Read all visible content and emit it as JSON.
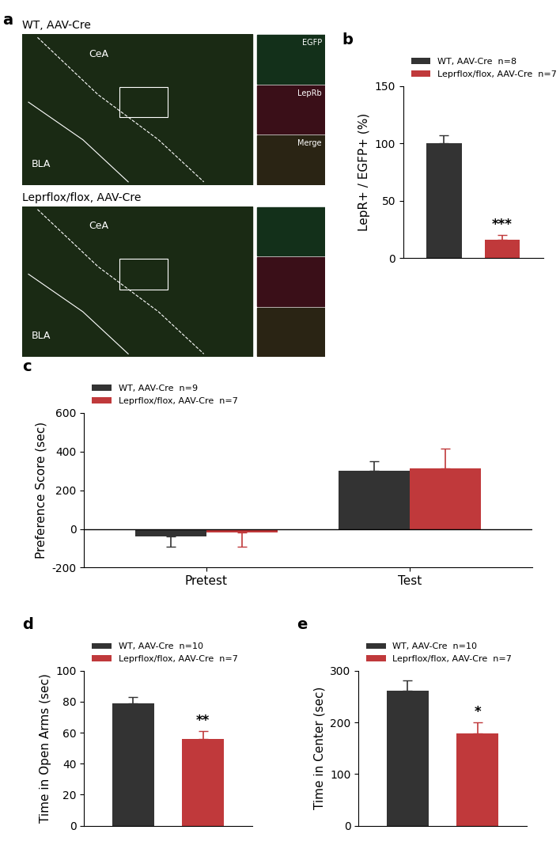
{
  "panel_a": {
    "label": "a",
    "images": [
      {
        "title": "WT, AAV-Cre",
        "regions": [
          "CeA",
          "BLA"
        ],
        "insets": [
          "EGFP",
          "LepRb",
          "Merge"
        ]
      },
      {
        "title": "Leprflox/flox, AAV-Cre",
        "regions": [
          "CeA",
          "BLA"
        ],
        "insets": []
      }
    ]
  },
  "chart_data": [
    {
      "type": "bar",
      "title": "b",
      "y_label": "LepR+ / EGFP+ (%)",
      "ylim": [
        0,
        150
      ],
      "yticks": [
        0,
        50,
        100,
        150
      ],
      "tick_labels": "y",
      "legend": "upper left",
      "series": [
        {
          "name": "WT, AAV-Cre  n=8",
          "color": "#333333",
          "values": [
            100
          ],
          "errors": [
            7
          ]
        },
        {
          "name": "Leprflox/flox, AAV-Cre  n=7",
          "color": "#c0393b",
          "values": [
            16
          ],
          "errors": [
            4
          ],
          "annotation": "***"
        }
      ]
    },
    {
      "type": "grouped_bar",
      "title": "c",
      "y_label": "Preference Score (sec)",
      "categories": [
        "Pretest",
        "Test"
      ],
      "ylim": [
        -200,
        600
      ],
      "yticks": [
        -200,
        0,
        200,
        400,
        600
      ],
      "legend": "upper left",
      "series": [
        {
          "name": "WT, AAV-Cre  n=9",
          "color": "#333333",
          "values": [
            -38,
            300
          ],
          "errors": [
            55,
            50
          ]
        },
        {
          "name": "Leprflox/flox, AAV-Cre  n=7",
          "color": "#c0393b",
          "values": [
            -20,
            312
          ],
          "errors": [
            70,
            105
          ]
        }
      ]
    },
    {
      "type": "bar",
      "title": "d",
      "y_label": "Time in Open Arms (sec)",
      "ylim": [
        0,
        100
      ],
      "yticks": [
        0,
        20,
        40,
        60,
        80,
        100
      ],
      "tick_labels": "y",
      "legend": "upper left",
      "series": [
        {
          "name": "WT, AAV-Cre  n=10",
          "color": "#333333",
          "values": [
            79
          ],
          "errors": [
            4
          ]
        },
        {
          "name": "Leprflox/flox, AAV-Cre  n=7",
          "color": "#c0393b",
          "values": [
            56
          ],
          "errors": [
            5
          ],
          "annotation": "**"
        }
      ]
    },
    {
      "type": "bar",
      "title": "e",
      "y_label": "Time in Center (sec)",
      "ylim": [
        0,
        300
      ],
      "yticks": [
        0,
        100,
        200,
        300
      ],
      "tick_labels": "y",
      "legend": "upper left",
      "series": [
        {
          "name": "WT, AAV-Cre  n=10",
          "color": "#333333",
          "values": [
            262
          ],
          "errors": [
            20
          ]
        },
        {
          "name": "Leprflox/flox, AAV-Cre  n=7",
          "color": "#c0393b",
          "values": [
            178
          ],
          "errors": [
            22
          ],
          "annotation": "*"
        }
      ]
    }
  ]
}
